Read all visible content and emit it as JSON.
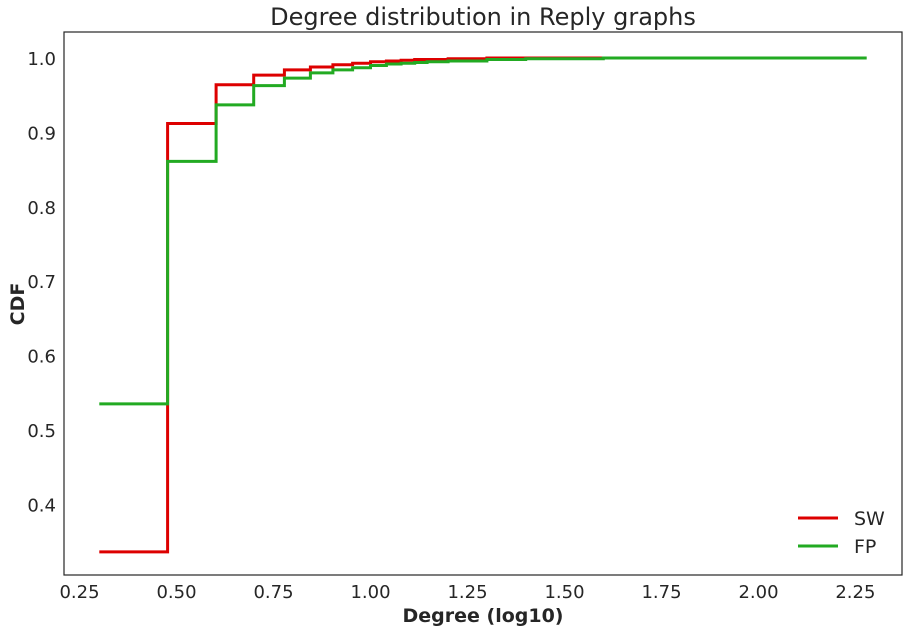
{
  "chart_data": {
    "type": "line",
    "step": true,
    "title": "Degree distribution in Reply graphs",
    "xlabel": "Degree (log10)",
    "ylabel": "CDF",
    "xlim": [
      0.21,
      2.37
    ],
    "ylim": [
      0.305,
      1.035
    ],
    "x_ticks": [
      0.25,
      0.5,
      0.75,
      1.0,
      1.25,
      1.5,
      1.75,
      2.0,
      2.25
    ],
    "x_tick_labels": [
      "0.25",
      "0.50",
      "0.75",
      "1.00",
      "1.25",
      "1.50",
      "1.75",
      "2.00",
      "2.25"
    ],
    "y_ticks": [
      0.4,
      0.5,
      0.6,
      0.7,
      0.8,
      0.9,
      1.0
    ],
    "y_tick_labels": [
      "0.4",
      "0.5",
      "0.6",
      "0.7",
      "0.8",
      "0.9",
      "1.0"
    ],
    "grid": false,
    "legend_position": "bottom-right",
    "series": [
      {
        "name": "SW",
        "color": "#dd0000",
        "x": [
          0.301,
          0.477,
          0.602,
          0.699,
          0.778,
          0.845,
          0.903,
          0.954,
          1.0,
          1.041,
          1.079,
          1.114,
          1.146,
          1.2,
          1.3,
          1.4,
          1.5,
          1.6,
          1.8,
          2.02
        ],
        "y": [
          0.336,
          0.912,
          0.964,
          0.977,
          0.984,
          0.988,
          0.991,
          0.993,
          0.995,
          0.996,
          0.997,
          0.998,
          0.998,
          0.999,
          1.0,
          1.0,
          1.0,
          1.0,
          1.0,
          1.0
        ]
      },
      {
        "name": "FP",
        "color": "#22aa22",
        "x": [
          0.301,
          0.477,
          0.602,
          0.699,
          0.778,
          0.845,
          0.903,
          0.954,
          1.0,
          1.041,
          1.079,
          1.114,
          1.146,
          1.2,
          1.3,
          1.4,
          1.5,
          1.6,
          1.8,
          2.0,
          2.279
        ],
        "y": [
          0.535,
          0.861,
          0.937,
          0.963,
          0.973,
          0.98,
          0.984,
          0.987,
          0.99,
          0.992,
          0.993,
          0.994,
          0.995,
          0.996,
          0.998,
          0.999,
          0.999,
          1.0,
          1.0,
          1.0,
          1.0
        ]
      }
    ]
  }
}
